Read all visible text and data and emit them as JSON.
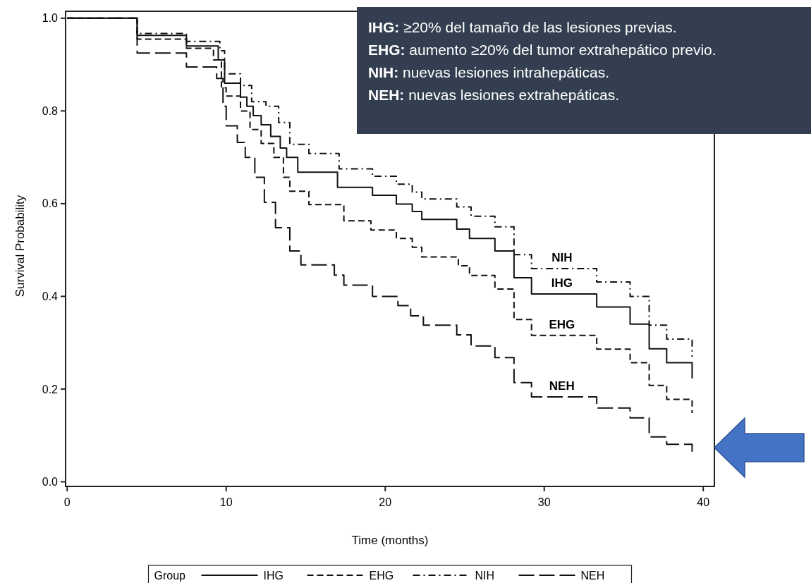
{
  "chart_data": {
    "type": "step",
    "xlabel": "Time (months)",
    "ylabel": "Survival Probability",
    "legend_title": "Group",
    "legend": "bottom",
    "xlim": [
      -0.1,
      40.7
    ],
    "ylim": [
      -0.01,
      1.015
    ],
    "xticks": [
      0,
      10,
      20,
      30,
      40
    ],
    "yticks": [
      {
        "value": 0,
        "label": "0.0"
      },
      {
        "value": 0.2,
        "label": "0.2"
      },
      {
        "value": 0.4,
        "label": "0.4"
      },
      {
        "value": 0.6,
        "label": "0.6"
      },
      {
        "value": 0.8,
        "label": "0.8"
      },
      {
        "value": 1,
        "label": "1.0"
      }
    ],
    "series": [
      {
        "name": "IHG",
        "color": "#111111",
        "line_style": "solid",
        "x": [
          0,
          4.4,
          7.5,
          9.5,
          9.9,
          10.9,
          11.3,
          11.7,
          12.2,
          12.8,
          13.4,
          13.8,
          14.5,
          17.0,
          19.2,
          20.7,
          21.7,
          22.3,
          24.5,
          25.3,
          26.9,
          28.1,
          29.2,
          33.3,
          35.4,
          36.6,
          37.7,
          39.3
        ],
        "values": [
          1,
          0.963,
          0.94,
          0.91,
          0.86,
          0.83,
          0.81,
          0.79,
          0.77,
          0.745,
          0.72,
          0.7,
          0.668,
          0.635,
          0.618,
          0.599,
          0.583,
          0.566,
          0.545,
          0.525,
          0.498,
          0.44,
          0.405,
          0.377,
          0.34,
          0.287,
          0.257,
          0.223
        ]
      },
      {
        "name": "EHG",
        "color": "#111111",
        "line_style": "dashed",
        "x": [
          0,
          4.4,
          7.5,
          9.2,
          9.7,
          10.0,
          10.9,
          11.5,
          12.2,
          13.0,
          13.6,
          14.0,
          15.2,
          17.4,
          19.1,
          20.7,
          21.7,
          22.3,
          24.6,
          25.3,
          26.9,
          28.1,
          29.2,
          33.3,
          35.4,
          36.6,
          37.7,
          39.3
        ],
        "values": [
          1,
          0.955,
          0.935,
          0.91,
          0.85,
          0.832,
          0.8,
          0.76,
          0.73,
          0.7,
          0.657,
          0.627,
          0.598,
          0.563,
          0.543,
          0.525,
          0.506,
          0.485,
          0.466,
          0.445,
          0.416,
          0.35,
          0.316,
          0.286,
          0.257,
          0.208,
          0.178,
          0.148
        ]
      },
      {
        "name": "NIH",
        "color": "#111111",
        "line_style": "dashdot",
        "x": [
          0,
          4.4,
          7.5,
          9.6,
          9.9,
          10.9,
          11.6,
          12.5,
          13.3,
          14.0,
          15.2,
          17.1,
          19.2,
          20.7,
          21.7,
          22.3,
          24.5,
          25.4,
          26.9,
          28.1,
          29.2,
          33.3,
          35.4,
          36.6,
          37.7,
          39.3
        ],
        "values": [
          1,
          0.967,
          0.95,
          0.93,
          0.88,
          0.855,
          0.82,
          0.81,
          0.775,
          0.728,
          0.708,
          0.675,
          0.659,
          0.642,
          0.625,
          0.61,
          0.593,
          0.573,
          0.55,
          0.49,
          0.46,
          0.431,
          0.4,
          0.338,
          0.308,
          0.27
        ]
      },
      {
        "name": "NEH",
        "color": "#111111",
        "line_style": "longdash",
        "x": [
          0,
          4.4,
          7.5,
          9.4,
          9.8,
          10.0,
          10.7,
          11.2,
          11.8,
          12.4,
          13.1,
          14.0,
          14.7,
          16.8,
          17.4,
          19.2,
          20.8,
          21.6,
          22.4,
          24.5,
          25.4,
          26.9,
          28.1,
          29.2,
          33.3,
          35.4,
          36.6,
          37.7,
          39.3
        ],
        "values": [
          1,
          0.925,
          0.895,
          0.87,
          0.81,
          0.768,
          0.732,
          0.7,
          0.657,
          0.603,
          0.548,
          0.498,
          0.468,
          0.446,
          0.424,
          0.4,
          0.38,
          0.358,
          0.338,
          0.317,
          0.293,
          0.268,
          0.214,
          0.183,
          0.159,
          0.138,
          0.097,
          0.081,
          0.064
        ]
      }
    ],
    "annotations": [
      "IHG: ≥20% del tamaño de las lesiones previas.",
      "EHG: aumento ≥20% del tumor extrahepático previo.",
      "NIH: nuevas lesiones intrahepáticas.",
      "NEH: nuevas lesiones extrahepáticas."
    ]
  }
}
